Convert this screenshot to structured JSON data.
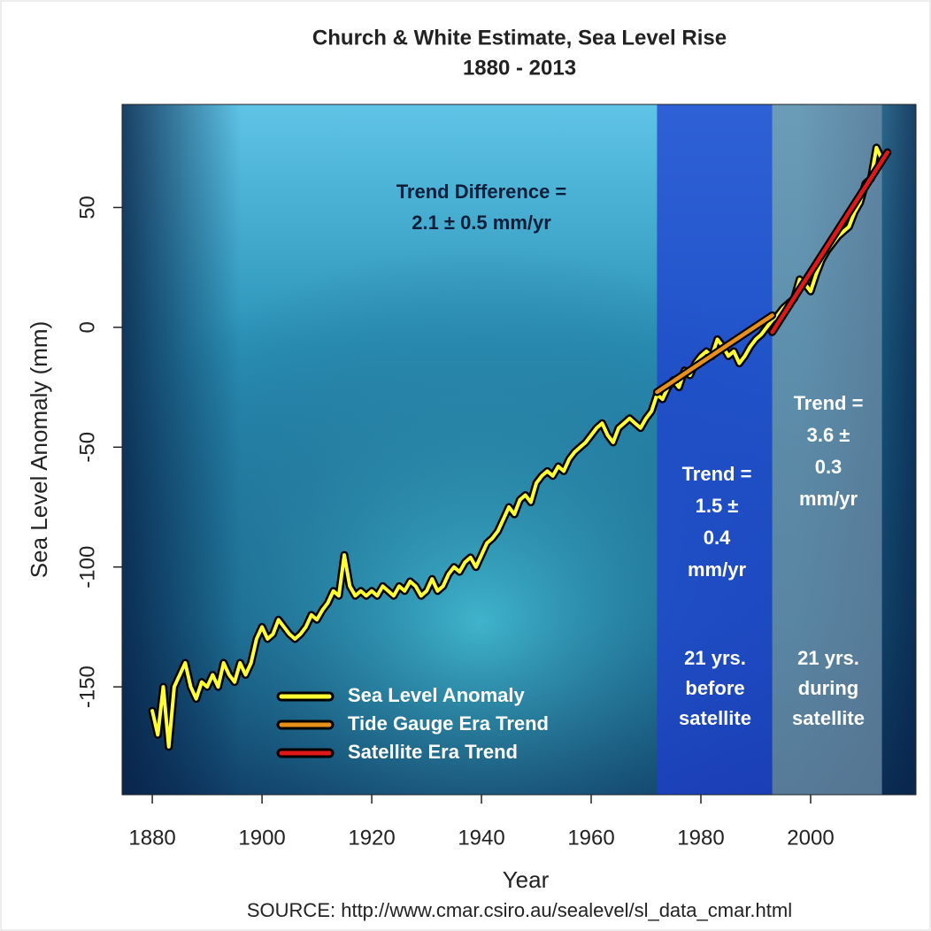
{
  "chart_data": {
    "type": "line",
    "title": "Church & White Estimate, Sea Level Rise",
    "subtitle": "1880 - 2013",
    "x_label": "Year",
    "y_label": "Sea Level Anomaly (mm)",
    "source": "SOURCE: http://www.cmar.csiro.au/sealevel/sl_data_cmar.html",
    "xlim": [
      1874.5,
      2019.2
    ],
    "ylim": [
      -195,
      93
    ],
    "xticks": [
      1880,
      1900,
      1920,
      1940,
      1960,
      1980,
      2000
    ],
    "yticks": [
      -150,
      -100,
      -50,
      0,
      50
    ],
    "regions": [
      {
        "xlim": [
          1972,
          1993
        ],
        "color": "#1f3fd0"
      },
      {
        "xlim": [
          1993,
          2013
        ],
        "color": "#6f8fa8"
      }
    ],
    "series": [
      {
        "name": "Sea Level Anomaly",
        "color": "#ffff33",
        "x": [
          1880,
          1881,
          1882,
          1883,
          1884,
          1885,
          1886,
          1887,
          1888,
          1889,
          1890,
          1891,
          1892,
          1893,
          1894,
          1895,
          1896,
          1897,
          1898,
          1899,
          1900,
          1901,
          1902,
          1903,
          1904,
          1905,
          1906,
          1907,
          1908,
          1909,
          1910,
          1911,
          1912,
          1913,
          1914,
          1915,
          1916,
          1917,
          1918,
          1919,
          1920,
          1921,
          1922,
          1923,
          1924,
          1925,
          1926,
          1927,
          1928,
          1929,
          1930,
          1931,
          1932,
          1933,
          1934,
          1935,
          1936,
          1937,
          1938,
          1939,
          1940,
          1941,
          1942,
          1943,
          1944,
          1945,
          1946,
          1947,
          1948,
          1949,
          1950,
          1951,
          1952,
          1953,
          1954,
          1955,
          1956,
          1957,
          1958,
          1959,
          1960,
          1961,
          1962,
          1963,
          1964,
          1965,
          1966,
          1967,
          1968,
          1969,
          1970,
          1971,
          1972,
          1973,
          1974,
          1975,
          1976,
          1977,
          1978,
          1979,
          1980,
          1981,
          1982,
          1983,
          1984,
          1985,
          1986,
          1987,
          1988,
          1989,
          1990,
          1991,
          1992,
          1993,
          1994,
          1995,
          1996,
          1997,
          1998,
          1999,
          2000,
          2001,
          2002,
          2003,
          2004,
          2005,
          2006,
          2007,
          2008,
          2009,
          2010,
          2011,
          2012,
          2013
        ],
        "values": [
          -160,
          -170,
          -150,
          -175,
          -150,
          -145,
          -140,
          -150,
          -155,
          -148,
          -150,
          -145,
          -150,
          -140,
          -145,
          -148,
          -140,
          -145,
          -140,
          -130,
          -125,
          -130,
          -128,
          -122,
          -125,
          -128,
          -130,
          -128,
          -125,
          -120,
          -122,
          -118,
          -115,
          -110,
          -112,
          -95,
          -108,
          -112,
          -110,
          -112,
          -110,
          -112,
          -108,
          -110,
          -112,
          -108,
          -110,
          -106,
          -108,
          -112,
          -110,
          -105,
          -110,
          -108,
          -103,
          -100,
          -102,
          -98,
          -96,
          -100,
          -95,
          -90,
          -88,
          -85,
          -80,
          -75,
          -78,
          -72,
          -70,
          -73,
          -65,
          -62,
          -60,
          -62,
          -58,
          -60,
          -55,
          -52,
          -50,
          -48,
          -45,
          -42,
          -40,
          -45,
          -48,
          -42,
          -40,
          -38,
          -40,
          -42,
          -38,
          -35,
          -28,
          -30,
          -25,
          -22,
          -25,
          -18,
          -20,
          -15,
          -12,
          -10,
          -12,
          -5,
          -8,
          -12,
          -10,
          -15,
          -12,
          -8,
          -5,
          -3,
          0,
          3,
          5,
          8,
          10,
          12,
          20,
          18,
          15,
          22,
          28,
          32,
          35,
          38,
          40,
          42,
          48,
          52,
          60,
          62,
          75,
          70
        ]
      },
      {
        "name": "Tide Gauge Era Trend",
        "color": "#e8901c",
        "x": [
          1972,
          1993
        ],
        "values": [
          -27,
          5
        ]
      },
      {
        "name": "Satellite Era Trend",
        "color": "#e01818",
        "x": [
          1993,
          2014
        ],
        "values": [
          -2,
          73
        ]
      }
    ],
    "annotations": [
      {
        "lines": [
          "Trend Difference =",
          "2.1 ± 0.5 mm/yr"
        ]
      },
      {
        "lines": [
          "Trend =",
          "1.5 ±",
          "0.4",
          "mm/yr"
        ]
      },
      {
        "lines": [
          "Trend =",
          "3.6 ±",
          "0.3",
          "mm/yr"
        ]
      },
      {
        "lines": [
          "21 yrs.",
          "before",
          "satellite"
        ]
      },
      {
        "lines": [
          "21 yrs.",
          "during",
          "satellite"
        ]
      }
    ]
  }
}
